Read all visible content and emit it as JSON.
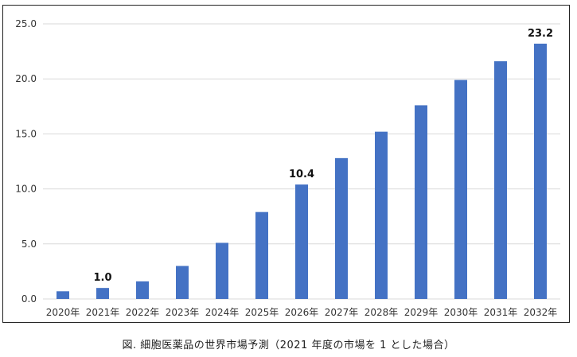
{
  "chart_data": {
    "type": "bar",
    "categories": [
      "2020年",
      "2021年",
      "2022年",
      "2023年",
      "2024年",
      "2025年",
      "2026年",
      "2027年",
      "2028年",
      "2029年",
      "2030年",
      "2031年",
      "2032年"
    ],
    "values": [
      0.7,
      1.0,
      1.6,
      3.0,
      5.1,
      7.9,
      10.4,
      12.8,
      15.2,
      17.6,
      19.9,
      21.6,
      23.2
    ],
    "data_labels": [
      {
        "index": 1,
        "text": "1.0"
      },
      {
        "index": 6,
        "text": "10.4"
      },
      {
        "index": 12,
        "text": "23.2"
      }
    ],
    "yticks": [
      "0.0",
      "5.0",
      "10.0",
      "15.0",
      "20.0",
      "25.0"
    ],
    "ylim": [
      0,
      25
    ],
    "grid": true,
    "legend": "none",
    "bar_color": "#4472c4",
    "grid_color": "#d9d9d9"
  },
  "caption": "図. 細胞医薬品の世界市場予測（2021 年度の市場を 1 とした場合）"
}
